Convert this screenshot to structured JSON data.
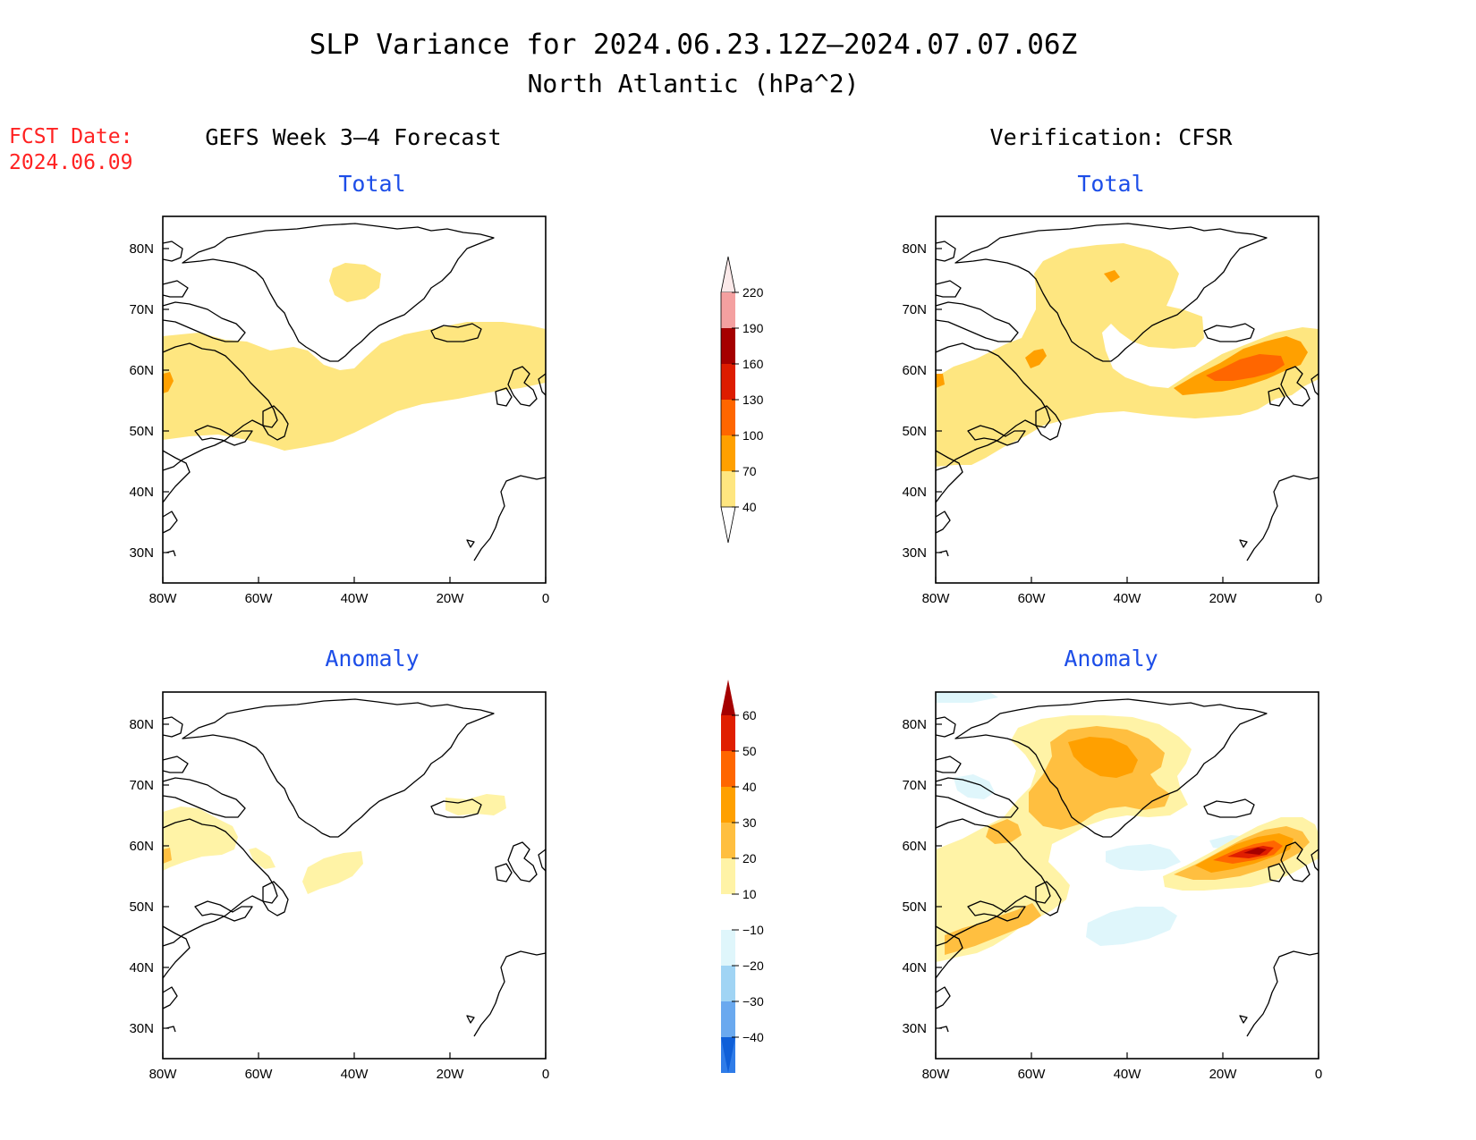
{
  "title": {
    "line1": "SLP Variance for 2024.06.23.12Z–2024.07.07.06Z",
    "line2": "North Atlantic (hPa^2)"
  },
  "fcst_date": {
    "label": "FCST Date:",
    "value": "2024.06.09"
  },
  "columns": {
    "left": "GEFS Week 3–4 Forecast",
    "right": "Verification: CFSR"
  },
  "panels": {
    "top_left": {
      "subtitle": "Total"
    },
    "top_right": {
      "subtitle": "Total"
    },
    "bottom_left": {
      "subtitle": "Anomaly"
    },
    "bottom_right": {
      "subtitle": "Anomaly"
    }
  },
  "axes": {
    "lon_labels": [
      "80W",
      "60W",
      "40W",
      "20W",
      "0"
    ],
    "lat_labels": [
      "80N",
      "70N",
      "60N",
      "50N",
      "40N",
      "30N"
    ]
  },
  "colorbar_total": {
    "levels": [
      "220",
      "190",
      "160",
      "130",
      "100",
      "70",
      "40"
    ],
    "colors": [
      "#fbe9e9",
      "#f4a0a0",
      "#a50000",
      "#dd1c00",
      "#ff6600",
      "#ffa000",
      "#fee680"
    ]
  },
  "colorbar_anomaly": {
    "levels": [
      "60",
      "50",
      "40",
      "30",
      "20",
      "10",
      "−10",
      "−20",
      "−30",
      "−40"
    ],
    "colors": [
      "#a50000",
      "#e01e00",
      "#ff6600",
      "#ffa000",
      "#ffbf40",
      "#fff3a6",
      "#ffffff",
      "#dff6fb",
      "#a0d4f4",
      "#6aa9ef",
      "#2f7ce8",
      "#0f5fd8"
    ]
  },
  "legend": {
    "color_total_40": "#fee680",
    "color_total_70": "#ffa000",
    "color_total_100": "#ff6600",
    "color_total_130": "#dd1c00",
    "color_anom_10": "#fff3a6",
    "color_anom_20": "#ffbf40",
    "color_anom_30": "#ffa000",
    "color_anom_40": "#ff6600",
    "color_anom_50": "#e01e00",
    "color_anom_60": "#a50000",
    "color_anom_neg10": "#dff6fb"
  }
}
